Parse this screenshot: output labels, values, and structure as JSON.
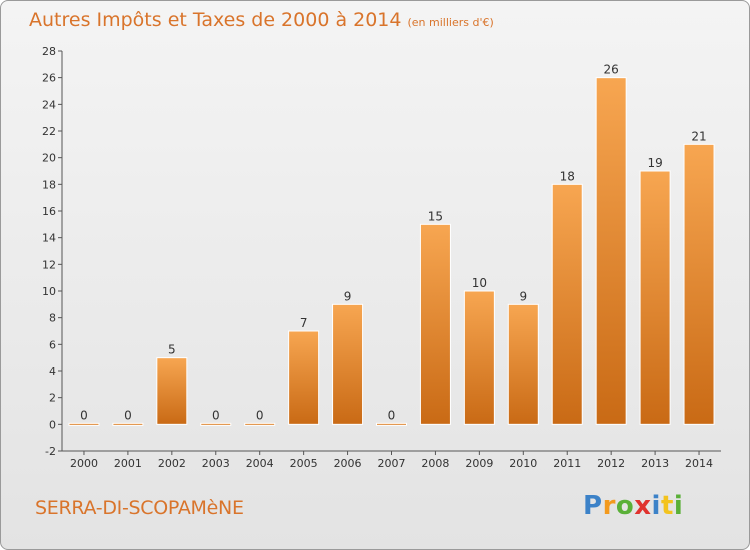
{
  "chart_data": {
    "type": "bar",
    "title": "Autres Impôts et Taxes de 2000 à 2014",
    "subtitle": "(en milliers d'€)",
    "categories": [
      "2000",
      "2001",
      "2002",
      "2003",
      "2004",
      "2005",
      "2006",
      "2007",
      "2008",
      "2009",
      "2010",
      "2011",
      "2012",
      "2013",
      "2014"
    ],
    "values": [
      0,
      0,
      5,
      0,
      0,
      7,
      9,
      0,
      15,
      10,
      9,
      18,
      26,
      19,
      21
    ],
    "ylim": [
      -2,
      28
    ],
    "yticks": [
      -2,
      0,
      2,
      4,
      6,
      8,
      10,
      12,
      14,
      16,
      18,
      20,
      22,
      24,
      26,
      28
    ],
    "xlabel": "",
    "ylabel": "",
    "grid": false,
    "bar_color": "#e58a32"
  },
  "commune": "SERRA-DI-SCOPAMèNE",
  "logo": {
    "letters": [
      "P",
      "r",
      "o",
      "x",
      "i",
      "t",
      "i"
    ],
    "colors": [
      "#3c82c8",
      "#f39a1e",
      "#5ab038",
      "#e0322e",
      "#3c82c8",
      "#f3c31e",
      "#5ab038"
    ]
  }
}
